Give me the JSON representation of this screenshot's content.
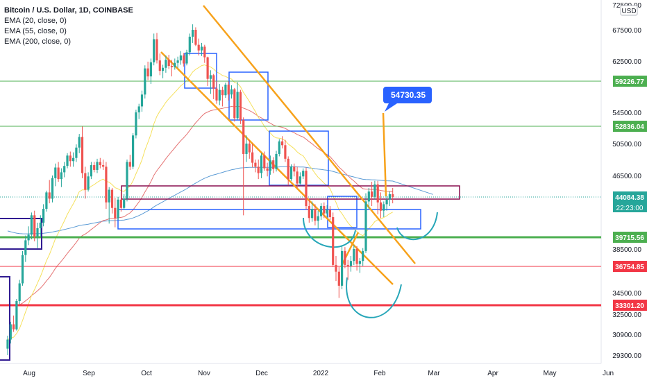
{
  "header": {
    "symbol": "Bitcoin / U.S. Dollar, 1D, COINBASE",
    "indicators": [
      "EMA (20, close, 0)",
      "EMA (55, close, 0)",
      "EMA (200, close, 0)"
    ]
  },
  "currency": "USD",
  "colors": {
    "up": "#26a69a",
    "down": "#ef5350",
    "ema20": "#f5e05c",
    "ema55": "#e57373",
    "ema200": "#5b9bd5",
    "green_level": "#4caf50",
    "red_level": "#f23645",
    "orange": "#f7a21b",
    "blue_box": "#2962ff",
    "maroon_box": "#880e4f",
    "navy_box": "#311b92",
    "cyan_curve": "#26a6b8",
    "callout": "#2962ff"
  },
  "callout": {
    "text": "54730.35"
  },
  "chart_data": {
    "type": "candlestick",
    "title": "Bitcoin / U.S. Dollar, 1D, COINBASE",
    "y_ticks": [
      "72500.00",
      "67500.00",
      "62500.00",
      "54500.00",
      "50500.00",
      "46500.00",
      "38500.00",
      "34500.00",
      "32500.00",
      "30900.00",
      "29300.00"
    ],
    "x_ticks": [
      "Aug",
      "Sep",
      "Oct",
      "Nov",
      "Dec",
      "2022",
      "Feb",
      "Mar",
      "Apr",
      "May",
      "Jun"
    ],
    "levels": [
      {
        "price": "59226.77",
        "color": "green"
      },
      {
        "price": "52836.04",
        "color": "green"
      },
      {
        "price": "44084.38",
        "color": "green",
        "current": true,
        "countdown": "22:23:00"
      },
      {
        "price": "39715.56",
        "color": "green"
      },
      {
        "price": "36754.85",
        "color": "red"
      },
      {
        "price": "33301.20",
        "color": "red"
      }
    ],
    "candles": [
      [
        29800,
        30800,
        28900,
        30500
      ],
      [
        30500,
        31900,
        30200,
        31700
      ],
      [
        31700,
        32400,
        31100,
        31300
      ],
      [
        31300,
        33900,
        31200,
        33700
      ],
      [
        33700,
        35600,
        33400,
        35300
      ],
      [
        35300,
        38300,
        35100,
        37900
      ],
      [
        37900,
        39900,
        37200,
        39400
      ],
      [
        39400,
        40900,
        38900,
        40000
      ],
      [
        40000,
        42400,
        39500,
        42100
      ],
      [
        42100,
        42600,
        39300,
        39800
      ],
      [
        39800,
        41300,
        38600,
        40700
      ],
      [
        40700,
        42100,
        39800,
        41300
      ],
      [
        41300,
        43300,
        40900,
        42800
      ],
      [
        42800,
        44800,
        42500,
        44600
      ],
      [
        44600,
        46000,
        43400,
        43900
      ],
      [
        43900,
        46500,
        43500,
        46200
      ],
      [
        46200,
        48000,
        45300,
        47500
      ],
      [
        47500,
        48200,
        45800,
        46100
      ],
      [
        46100,
        47400,
        45200,
        46900
      ],
      [
        46900,
        48200,
        46300,
        47700
      ],
      [
        47700,
        49300,
        47400,
        49000
      ],
      [
        49000,
        49500,
        47600,
        48300
      ],
      [
        48300,
        49400,
        47600,
        48700
      ],
      [
        48700,
        50400,
        48200,
        50000
      ],
      [
        50000,
        51800,
        49300,
        51400
      ],
      [
        51400,
        52800,
        46200,
        46800
      ],
      [
        46800,
        47600,
        43900,
        44900
      ],
      [
        44900,
        46900,
        44700,
        46400
      ],
      [
        46400,
        48200,
        46100,
        47800
      ],
      [
        47800,
        48200,
        46900,
        47200
      ],
      [
        47200,
        48600,
        46800,
        48200
      ],
      [
        48200,
        48700,
        47400,
        47800
      ],
      [
        47800,
        48500,
        47200,
        47600
      ],
      [
        47600,
        48200,
        42800,
        43500
      ],
      [
        43500,
        45200,
        41200,
        44900
      ],
      [
        44900,
        45100,
        42300,
        42900
      ],
      [
        42900,
        44000,
        40800,
        41800
      ],
      [
        41800,
        44100,
        41600,
        43800
      ],
      [
        43800,
        44600,
        42500,
        42900
      ],
      [
        42900,
        44400,
        42700,
        43900
      ],
      [
        43900,
        48500,
        43600,
        48200
      ],
      [
        48200,
        49100,
        47200,
        47600
      ],
      [
        47600,
        51900,
        47300,
        51600
      ],
      [
        51600,
        54900,
        51200,
        54500
      ],
      [
        54500,
        55800,
        53700,
        55400
      ],
      [
        55400,
        57800,
        54600,
        57200
      ],
      [
        57200,
        61800,
        56600,
        61300
      ],
      [
        61300,
        62400,
        59400,
        60000
      ],
      [
        60000,
        62900,
        58800,
        62300
      ],
      [
        62300,
        66900,
        61800,
        66000
      ],
      [
        66000,
        67000,
        62100,
        62600
      ],
      [
        62600,
        63700,
        60200,
        60900
      ],
      [
        60900,
        61900,
        59700,
        61400
      ],
      [
        61400,
        63400,
        60600,
        62700
      ],
      [
        62700,
        63500,
        61200,
        61700
      ],
      [
        61700,
        62700,
        60000,
        61500
      ],
      [
        61500,
        62900,
        61100,
        62200
      ],
      [
        62200,
        63200,
        61400,
        62600
      ],
      [
        62600,
        64100,
        61900,
        63400
      ],
      [
        63400,
        63800,
        61600,
        62100
      ],
      [
        62100,
        64300,
        61800,
        63900
      ],
      [
        63900,
        66900,
        63400,
        66400
      ],
      [
        66400,
        68600,
        65400,
        67500
      ],
      [
        67500,
        68000,
        64900,
        65100
      ],
      [
        65100,
        66100,
        63400,
        64200
      ],
      [
        64200,
        65400,
        63300,
        64800
      ],
      [
        64800,
        65100,
        62200,
        63100
      ],
      [
        63100,
        63200,
        58500,
        59600
      ],
      [
        59600,
        61000,
        57300,
        60200
      ],
      [
        60200,
        60400,
        56500,
        58100
      ],
      [
        58100,
        59300,
        55800,
        56300
      ],
      [
        56300,
        58800,
        55600,
        57900
      ],
      [
        57900,
        58400,
        55400,
        57100
      ],
      [
        57100,
        59000,
        56700,
        58700
      ],
      [
        58700,
        59200,
        56300,
        57200
      ],
      [
        57200,
        58600,
        56600,
        58000
      ],
      [
        58000,
        58200,
        53400,
        53800
      ],
      [
        53800,
        59100,
        53600,
        57600
      ],
      [
        57600,
        57900,
        53100,
        53600
      ],
      [
        53600,
        53900,
        42100,
        49200
      ],
      [
        49200,
        51600,
        48200,
        50500
      ],
      [
        50500,
        51000,
        48600,
        49400
      ],
      [
        49400,
        50500,
        47500,
        48100
      ],
      [
        48100,
        48500,
        46900,
        47600
      ],
      [
        47600,
        48500,
        46100,
        46800
      ],
      [
        46800,
        49300,
        46200,
        49000
      ],
      [
        49000,
        49500,
        47100,
        47400
      ],
      [
        47400,
        48100,
        46400,
        47100
      ],
      [
        47100,
        49000,
        46600,
        48400
      ],
      [
        48400,
        48800,
        46800,
        47300
      ],
      [
        47300,
        49600,
        47000,
        49200
      ],
      [
        49200,
        51100,
        48900,
        50800
      ],
      [
        50800,
        51500,
        49900,
        50300
      ],
      [
        50300,
        51000,
        48200,
        48600
      ],
      [
        48600,
        48900,
        45400,
        46100
      ],
      [
        46100,
        47900,
        45900,
        47600
      ],
      [
        47600,
        48000,
        46400,
        47000
      ],
      [
        47000,
        47600,
        45100,
        45600
      ],
      [
        45600,
        46900,
        45500,
        46400
      ],
      [
        46400,
        47400,
        46100,
        47100
      ],
      [
        47100,
        47500,
        42700,
        43100
      ],
      [
        43100,
        43800,
        41300,
        41800
      ],
      [
        41800,
        43600,
        41400,
        42800
      ],
      [
        42800,
        43300,
        41000,
        41500
      ],
      [
        41500,
        42600,
        40600,
        42000
      ],
      [
        42000,
        43400,
        41600,
        43100
      ],
      [
        43100,
        43500,
        41800,
        42300
      ],
      [
        42300,
        43200,
        41900,
        42700
      ],
      [
        42700,
        43100,
        41600,
        41900
      ],
      [
        41900,
        42400,
        36700,
        36900
      ],
      [
        36900,
        37800,
        35500,
        36300
      ],
      [
        36300,
        36700,
        34000,
        35100
      ],
      [
        35100,
        38800,
        34800,
        38300
      ],
      [
        38300,
        38700,
        36600,
        36900
      ],
      [
        36900,
        37400,
        35600,
        36800
      ],
      [
        36800,
        37800,
        36300,
        37300
      ],
      [
        37300,
        38900,
        36900,
        38500
      ],
      [
        38500,
        38800,
        36400,
        37000
      ],
      [
        37000,
        37600,
        36200,
        37300
      ],
      [
        37300,
        38600,
        36800,
        38300
      ],
      [
        38300,
        44500,
        38100,
        43600
      ],
      [
        43600,
        45100,
        42800,
        44700
      ],
      [
        44700,
        45800,
        43100,
        44100
      ],
      [
        44100,
        45900,
        43800,
        45500
      ],
      [
        45500,
        45900,
        42200,
        43500
      ],
      [
        43500,
        44600,
        41800,
        42600
      ],
      [
        42600,
        43600,
        41900,
        43300
      ],
      [
        43300,
        44200,
        42600,
        43800
      ],
      [
        43800,
        44700,
        43100,
        44400
      ],
      [
        44400,
        45100,
        43400,
        44100
      ]
    ]
  }
}
